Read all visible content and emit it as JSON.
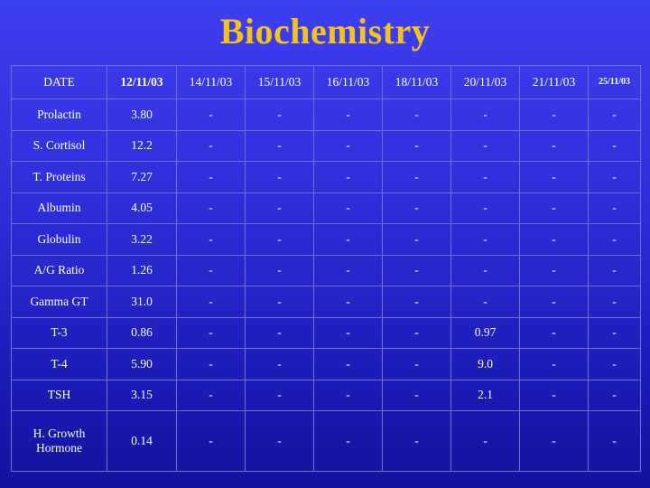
{
  "title": "Biochemistry",
  "table": {
    "header": [
      "DATE",
      "12/11/03",
      "14/11/03",
      "15/11/03",
      "16/11/03",
      "18/11/03",
      "20/11/03",
      "21/11/03",
      "25/11/03"
    ],
    "rows": [
      {
        "label": "Prolactin",
        "values": [
          "3.80",
          "-",
          "-",
          "-",
          "-",
          "-",
          "-",
          "-"
        ]
      },
      {
        "label": "S. Cortisol",
        "values": [
          "12.2",
          "-",
          "-",
          "-",
          "-",
          "-",
          "-",
          "-"
        ]
      },
      {
        "label": "T. Proteins",
        "values": [
          "7.27",
          "-",
          "-",
          "-",
          "-",
          "-",
          "-",
          "-"
        ]
      },
      {
        "label": "Albumin",
        "values": [
          "4.05",
          "-",
          "-",
          "-",
          "-",
          "-",
          "-",
          "-"
        ]
      },
      {
        "label": "Globulin",
        "values": [
          "3.22",
          "-",
          "-",
          "-",
          "-",
          "-",
          "-",
          "-"
        ]
      },
      {
        "label": "A/G Ratio",
        "values": [
          "1.26",
          "-",
          "-",
          "-",
          "-",
          "-",
          "-",
          "-"
        ]
      },
      {
        "label": "Gamma GT",
        "values": [
          "31.0",
          "-",
          "-",
          "-",
          "-",
          "-",
          "-",
          "-"
        ]
      },
      {
        "label": "T-3",
        "values": [
          "0.86",
          "-",
          "-",
          "-",
          "-",
          "0.97",
          "-",
          "-"
        ]
      },
      {
        "label": "T-4",
        "values": [
          "5.90",
          "-",
          "-",
          "-",
          "-",
          "9.0",
          "-",
          "-"
        ]
      },
      {
        "label": "TSH",
        "values": [
          "3.15",
          "-",
          "-",
          "-",
          "-",
          "2.1",
          "-",
          "-"
        ]
      },
      {
        "label": "H. Growth Hormone",
        "values": [
          "0.14",
          "-",
          "-",
          "-",
          "-",
          "-",
          "-",
          "-"
        ]
      }
    ]
  },
  "colors": {
    "title": "#f2c418",
    "background": "#2c2cd8",
    "grid": "#6f6fd6"
  }
}
